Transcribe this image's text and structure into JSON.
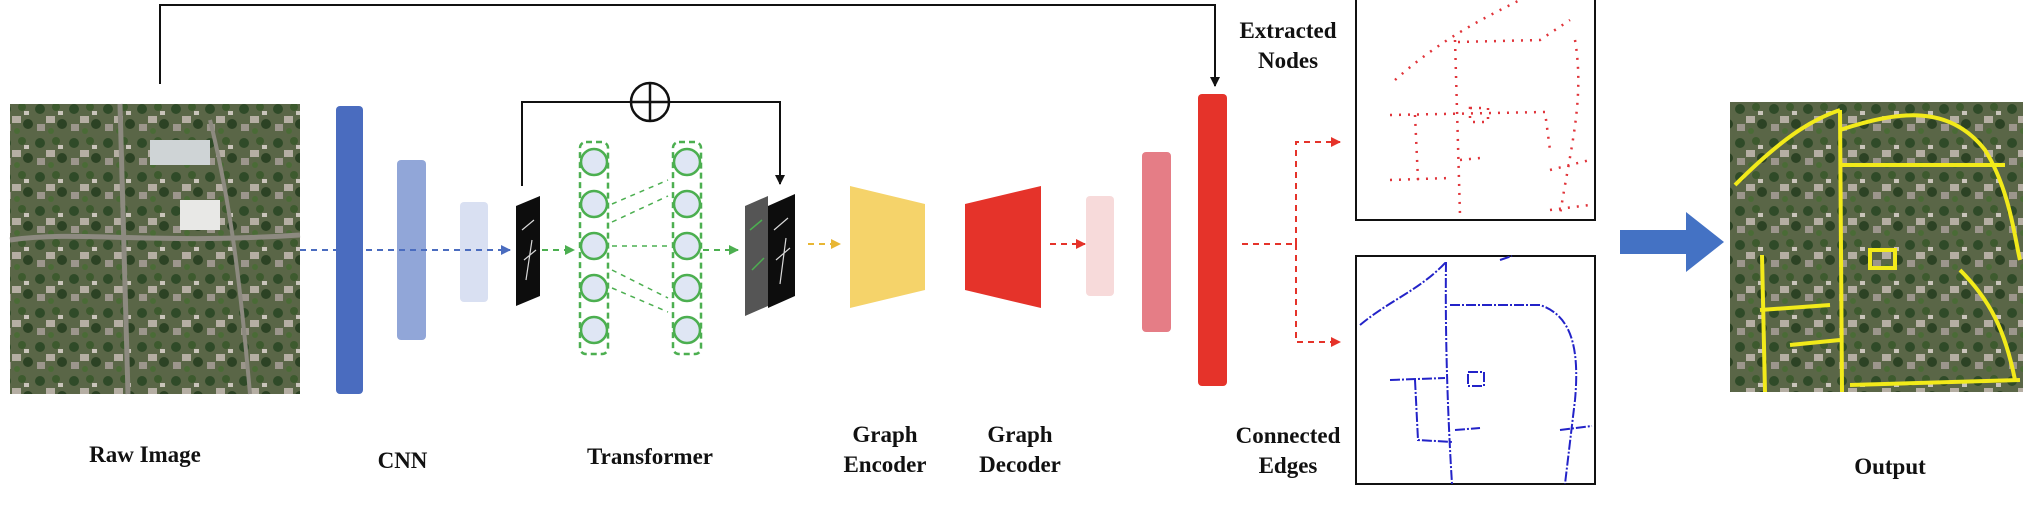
{
  "labels": {
    "raw_image": "Raw Image",
    "cnn": "CNN",
    "transformer": "Transformer",
    "graph_encoder_1": "Graph",
    "graph_encoder_2": "Encoder",
    "graph_decoder_1": "Graph",
    "graph_decoder_2": "Decoder",
    "extracted_nodes_1": "Extracted",
    "extracted_nodes_2": "Nodes",
    "connected_edges_1": "Connected",
    "connected_edges_2": "Edges",
    "output": "Output"
  },
  "colors": {
    "cnn_dark": "#4a6cbf",
    "cnn_mid": "#91a6d8",
    "cnn_light": "#d9e0f2",
    "transformer_green": "#4caf50",
    "node_fill": "#dfe6f4",
    "encoder_yellow": "#f5d36a",
    "decoder_red": "#e5332a",
    "dec_light": "#f7dada",
    "dec_mid": "#e57d86",
    "dec_dark": "#e5332a",
    "node_dots": "#e0343a",
    "edge_lines": "#2323c8",
    "road_yellow": "#f2ea1a",
    "arrow_blue": "#4472c4"
  }
}
